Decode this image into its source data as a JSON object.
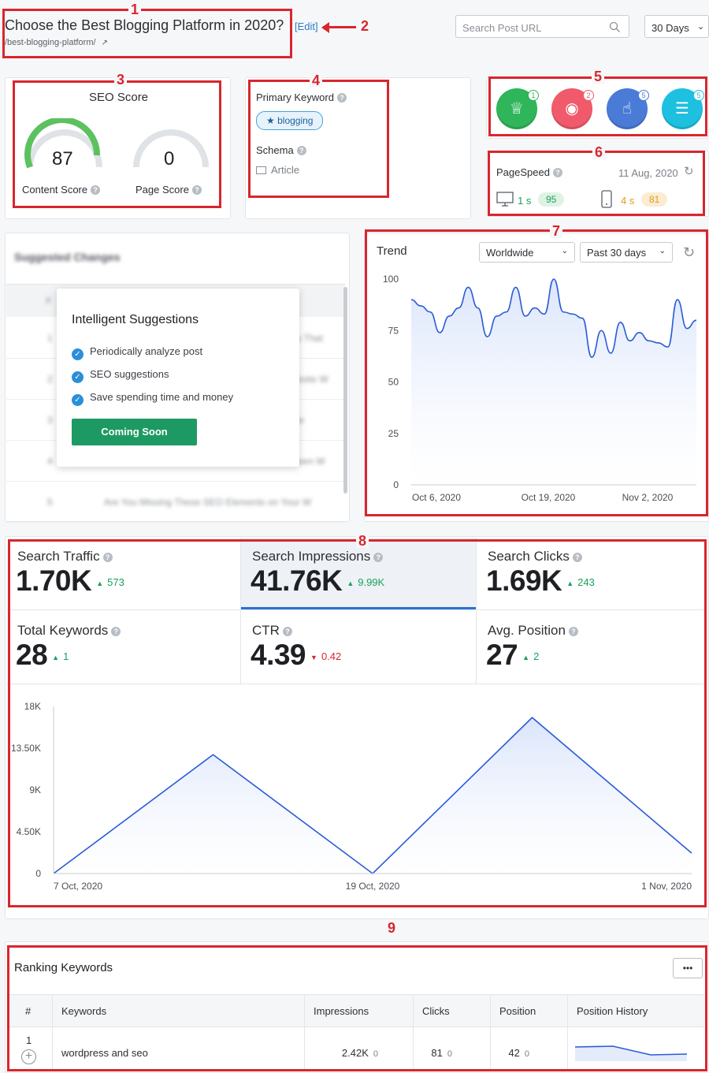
{
  "header": {
    "title": "Choose the Best Blogging Platform in 2020?",
    "url": "/best-blogging-platform/",
    "edit_label": "[Edit]",
    "search_placeholder": "Search Post URL",
    "range": "30 Days"
  },
  "annotations": [
    "1",
    "2",
    "3",
    "4",
    "5",
    "6",
    "7",
    "8",
    "9"
  ],
  "seo": {
    "title": "SEO Score",
    "content_score": "87",
    "page_score": "0",
    "content_label": "Content Score",
    "page_label": "Page Score"
  },
  "keyword": {
    "title": "Primary Keyword",
    "value": "blogging",
    "schema_title": "Schema",
    "schema_value": "Article"
  },
  "badges": [
    {
      "name": "crown-icon",
      "count": "1",
      "color": "#2fb55a"
    },
    {
      "name": "eye-icon",
      "count": "2",
      "color": "#f05a6a"
    },
    {
      "name": "pointer-icon",
      "count": "5",
      "color": "#4a7bd6"
    },
    {
      "name": "list-icon",
      "count": "5",
      "color": "#1ec0e0"
    }
  ],
  "pagespeed": {
    "title": "PageSpeed",
    "date": "11 Aug, 2020",
    "desktop_time": "1 s",
    "desktop_score": "95",
    "mobile_time": "4 s",
    "mobile_score": "81"
  },
  "suggested": {
    "title": "Suggested Changes",
    "col": "#",
    "rows": [
      {
        "n": "1",
        "text": "es That"
      },
      {
        "n": "2",
        "text": "ebsite W"
      },
      {
        "n": "3",
        "text": "ide"
      },
      {
        "n": "4",
        "text": "Been W"
      },
      {
        "n": "5",
        "text": "Are You Missing These SEO Elements on Your W"
      }
    ]
  },
  "popup": {
    "title": "Intelligent Suggestions",
    "items": [
      "Periodically analyze post",
      "SEO suggestions",
      "Save spending time and money"
    ],
    "button": "Coming Soon"
  },
  "trend": {
    "title": "Trend",
    "region": "Worldwide",
    "period": "Past 30 days"
  },
  "metrics": [
    {
      "label": "Search Traffic",
      "value": "1.70K",
      "delta": "573",
      "dir": "up"
    },
    {
      "label": "Search Impressions",
      "value": "41.76K",
      "delta": "9.99K",
      "dir": "up"
    },
    {
      "label": "Search Clicks",
      "value": "1.69K",
      "delta": "243",
      "dir": "up"
    },
    {
      "label": "Total Keywords",
      "value": "28",
      "delta": "1",
      "dir": "up"
    },
    {
      "label": "CTR",
      "value": "4.39",
      "delta": "0.42",
      "dir": "down"
    },
    {
      "label": "Avg. Position",
      "value": "27",
      "delta": "2",
      "dir": "up"
    }
  ],
  "ranking": {
    "title": "Ranking Keywords",
    "more": "•••",
    "headers": [
      "#",
      "Keywords",
      "Impressions",
      "Clicks",
      "Position",
      "Position History"
    ],
    "rows": [
      {
        "n": "1",
        "keyword": "wordpress and seo",
        "impressions": "2.42K",
        "imp_d": "0",
        "clicks": "81",
        "clk_d": "0",
        "position": "42",
        "pos_d": "0"
      }
    ]
  },
  "chart_data": [
    {
      "type": "area",
      "title": "Trend",
      "ylim": [
        0,
        100
      ],
      "yticks": [
        "100",
        "75",
        "50",
        "25",
        "0"
      ],
      "xticks": [
        "Oct 6, 2020",
        "Oct 19, 2020",
        "Nov 2, 2020"
      ],
      "values": [
        90,
        87,
        84,
        74,
        82,
        86,
        96,
        86,
        72,
        82,
        84,
        96,
        82,
        86,
        83,
        100,
        84,
        83,
        81,
        62,
        75,
        64,
        79,
        70,
        74,
        70,
        69,
        67,
        90,
        76,
        80
      ],
      "color": "#2a5bd7",
      "fill": "#dbe5fb"
    },
    {
      "type": "area",
      "title": "Search Impressions",
      "ylim": [
        0,
        18000
      ],
      "yticks": [
        "18K",
        "13.50K",
        "9K",
        "4.50K",
        "0"
      ],
      "xticks": [
        "7 Oct, 2020",
        "19 Oct, 2020",
        "1 Nov, 2020"
      ],
      "x": [
        "7 Oct, 2020",
        "13 Oct, 2020",
        "19 Oct, 2020",
        "26 Oct, 2020",
        "1 Nov, 2020"
      ],
      "values": [
        0,
        12800,
        0,
        16800,
        2200
      ],
      "color": "#2a5bd7",
      "fill": "#dbe5fb"
    }
  ]
}
